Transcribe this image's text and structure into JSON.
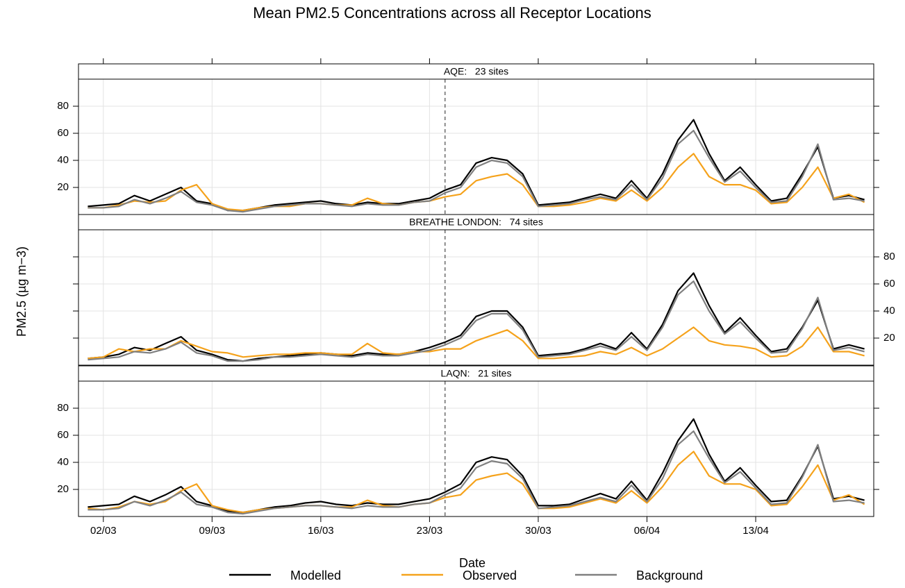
{
  "title": "Mean PM2.5 Concentrations across all Receptor Locations",
  "x_label": "Date",
  "y_label": "PM2.5 (µg m−3)",
  "chart_data": [
    {
      "type": "line",
      "strip": "AQE:   23 sites",
      "ytick_side": "left",
      "grid": true,
      "vline": "24/03",
      "x": [
        "01/03",
        "02/03",
        "03/03",
        "04/03",
        "05/03",
        "06/03",
        "07/03",
        "08/03",
        "09/03",
        "10/03",
        "11/03",
        "12/03",
        "13/03",
        "14/03",
        "15/03",
        "16/03",
        "17/03",
        "18/03",
        "19/03",
        "20/03",
        "21/03",
        "22/03",
        "23/03",
        "24/03",
        "25/03",
        "26/03",
        "27/03",
        "28/03",
        "29/03",
        "30/03",
        "31/03",
        "01/04",
        "02/04",
        "03/04",
        "04/04",
        "05/04",
        "06/04",
        "07/04",
        "08/04",
        "09/04",
        "10/04",
        "11/04",
        "12/04",
        "13/04",
        "14/04",
        "15/04",
        "16/04",
        "17/04",
        "18/04",
        "19/04",
        "20/04"
      ],
      "xticks": [
        "02/03",
        "09/03",
        "16/03",
        "23/03",
        "30/03",
        "06/04",
        "13/04"
      ],
      "ylim": [
        0,
        100
      ],
      "yticks": [
        20,
        40,
        60,
        80
      ],
      "series": [
        {
          "name": "Modelled",
          "color": "#000000",
          "values": [
            6,
            7,
            8,
            14,
            10,
            15,
            20,
            10,
            8,
            3,
            3,
            5,
            7,
            8,
            9,
            10,
            8,
            7,
            9,
            8,
            8,
            10,
            12,
            18,
            22,
            38,
            42,
            40,
            30,
            7,
            8,
            9,
            12,
            15,
            12,
            25,
            12,
            30,
            55,
            70,
            45,
            25,
            35,
            22,
            10,
            12,
            30,
            50,
            12,
            14,
            11
          ]
        },
        {
          "name": "Observed",
          "color": "#f5a21b",
          "values": [
            5,
            5,
            7,
            10,
            9,
            10,
            18,
            22,
            8,
            4,
            3,
            5,
            6,
            6,
            8,
            8,
            7,
            7,
            12,
            8,
            7,
            9,
            10,
            13,
            15,
            25,
            28,
            30,
            22,
            6,
            6,
            7,
            9,
            12,
            10,
            18,
            10,
            20,
            35,
            45,
            28,
            22,
            22,
            18,
            8,
            9,
            20,
            35,
            12,
            15,
            9
          ]
        },
        {
          "name": "Background",
          "color": "#808080",
          "values": [
            5,
            5,
            6,
            11,
            8,
            12,
            17,
            9,
            7,
            3,
            2,
            4,
            6,
            7,
            8,
            8,
            7,
            6,
            8,
            7,
            7,
            9,
            10,
            16,
            20,
            35,
            40,
            38,
            28,
            6,
            7,
            8,
            11,
            13,
            11,
            22,
            11,
            27,
            52,
            62,
            42,
            24,
            32,
            20,
            9,
            10,
            28,
            52,
            11,
            12,
            10
          ]
        }
      ]
    },
    {
      "type": "line",
      "strip": "BREATHE LONDON:   74 sites",
      "ytick_side": "right",
      "grid": true,
      "vline": "24/03",
      "x": [
        "01/03",
        "02/03",
        "03/03",
        "04/03",
        "05/03",
        "06/03",
        "07/03",
        "08/03",
        "09/03",
        "10/03",
        "11/03",
        "12/03",
        "13/03",
        "14/03",
        "15/03",
        "16/03",
        "17/03",
        "18/03",
        "19/03",
        "20/03",
        "21/03",
        "22/03",
        "23/03",
        "24/03",
        "25/03",
        "26/03",
        "27/03",
        "28/03",
        "29/03",
        "30/03",
        "31/03",
        "01/04",
        "02/04",
        "03/04",
        "04/04",
        "05/04",
        "06/04",
        "07/04",
        "08/04",
        "09/04",
        "10/04",
        "11/04",
        "12/04",
        "13/04",
        "14/04",
        "15/04",
        "16/04",
        "17/04",
        "18/04",
        "19/04",
        "20/04"
      ],
      "xticks": [
        "02/03",
        "09/03",
        "16/03",
        "23/03",
        "30/03",
        "06/04",
        "13/04"
      ],
      "ylim": [
        0,
        100
      ],
      "yticks": [
        20,
        40,
        60,
        80
      ],
      "series": [
        {
          "color": "#000000",
          "values": [
            5,
            6,
            8,
            13,
            11,
            16,
            21,
            11,
            8,
            4,
            3,
            5,
            6,
            7,
            8,
            9,
            8,
            7,
            9,
            8,
            8,
            10,
            13,
            17,
            22,
            36,
            40,
            40,
            28,
            7,
            8,
            9,
            12,
            16,
            12,
            24,
            12,
            30,
            55,
            68,
            44,
            24,
            35,
            22,
            10,
            12,
            28,
            48,
            12,
            15,
            12
          ]
        },
        {
          "color": "#f5a21b",
          "values": [
            5,
            6,
            12,
            10,
            12,
            12,
            18,
            14,
            10,
            9,
            6,
            7,
            8,
            8,
            9,
            9,
            8,
            8,
            16,
            9,
            8,
            10,
            10,
            12,
            12,
            18,
            22,
            26,
            18,
            5,
            5,
            6,
            7,
            10,
            8,
            13,
            7,
            12,
            20,
            28,
            18,
            15,
            14,
            12,
            6,
            7,
            14,
            28,
            10,
            10,
            7
          ]
        },
        {
          "color": "#808080",
          "values": [
            4,
            5,
            6,
            10,
            9,
            12,
            17,
            9,
            7,
            3,
            3,
            4,
            6,
            6,
            7,
            8,
            7,
            6,
            8,
            7,
            7,
            9,
            11,
            15,
            20,
            33,
            38,
            38,
            26,
            6,
            7,
            8,
            11,
            14,
            11,
            21,
            11,
            28,
            52,
            62,
            40,
            23,
            32,
            20,
            9,
            10,
            27,
            50,
            11,
            13,
            10
          ]
        }
      ]
    },
    {
      "type": "line",
      "strip": "LAQN:   21 sites",
      "ytick_side": "left",
      "grid": true,
      "vline": "24/03",
      "x": [
        "01/03",
        "02/03",
        "03/03",
        "04/03",
        "05/03",
        "06/03",
        "07/03",
        "08/03",
        "09/03",
        "10/03",
        "11/03",
        "12/03",
        "13/03",
        "14/03",
        "15/03",
        "16/03",
        "17/03",
        "18/03",
        "19/03",
        "20/03",
        "21/03",
        "22/03",
        "23/03",
        "24/03",
        "25/03",
        "26/03",
        "27/03",
        "28/03",
        "29/03",
        "30/03",
        "31/03",
        "01/04",
        "02/04",
        "03/04",
        "04/04",
        "05/04",
        "06/04",
        "07/04",
        "08/04",
        "09/04",
        "10/04",
        "11/04",
        "12/04",
        "13/04",
        "14/04",
        "15/04",
        "16/04",
        "17/04",
        "18/04",
        "19/04",
        "20/04"
      ],
      "xticks": [
        "02/03",
        "09/03",
        "16/03",
        "23/03",
        "30/03",
        "06/04",
        "13/04"
      ],
      "ylim": [
        0,
        100
      ],
      "yticks": [
        20,
        40,
        60,
        80
      ],
      "series": [
        {
          "color": "#000000",
          "values": [
            7,
            8,
            9,
            15,
            11,
            16,
            22,
            11,
            8,
            4,
            3,
            5,
            7,
            8,
            10,
            11,
            9,
            8,
            10,
            9,
            9,
            11,
            13,
            18,
            24,
            40,
            44,
            42,
            30,
            8,
            8,
            9,
            13,
            17,
            13,
            26,
            12,
            32,
            56,
            72,
            46,
            26,
            36,
            23,
            11,
            12,
            30,
            52,
            13,
            15,
            12
          ]
        },
        {
          "color": "#f5a21b",
          "values": [
            6,
            5,
            7,
            11,
            9,
            11,
            19,
            24,
            8,
            5,
            3,
            5,
            6,
            7,
            8,
            8,
            7,
            7,
            12,
            8,
            7,
            9,
            10,
            14,
            16,
            27,
            30,
            32,
            24,
            6,
            6,
            7,
            10,
            13,
            10,
            19,
            10,
            22,
            38,
            48,
            30,
            24,
            24,
            20,
            8,
            9,
            22,
            38,
            12,
            16,
            9
          ]
        },
        {
          "color": "#808080",
          "values": [
            5,
            5,
            6,
            11,
            8,
            12,
            18,
            9,
            7,
            3,
            2,
            4,
            6,
            7,
            8,
            8,
            7,
            6,
            8,
            7,
            7,
            9,
            10,
            16,
            21,
            36,
            41,
            39,
            28,
            6,
            7,
            8,
            11,
            14,
            11,
            23,
            11,
            28,
            53,
            63,
            43,
            25,
            33,
            21,
            9,
            10,
            29,
            53,
            11,
            12,
            10
          ]
        }
      ]
    }
  ]
}
